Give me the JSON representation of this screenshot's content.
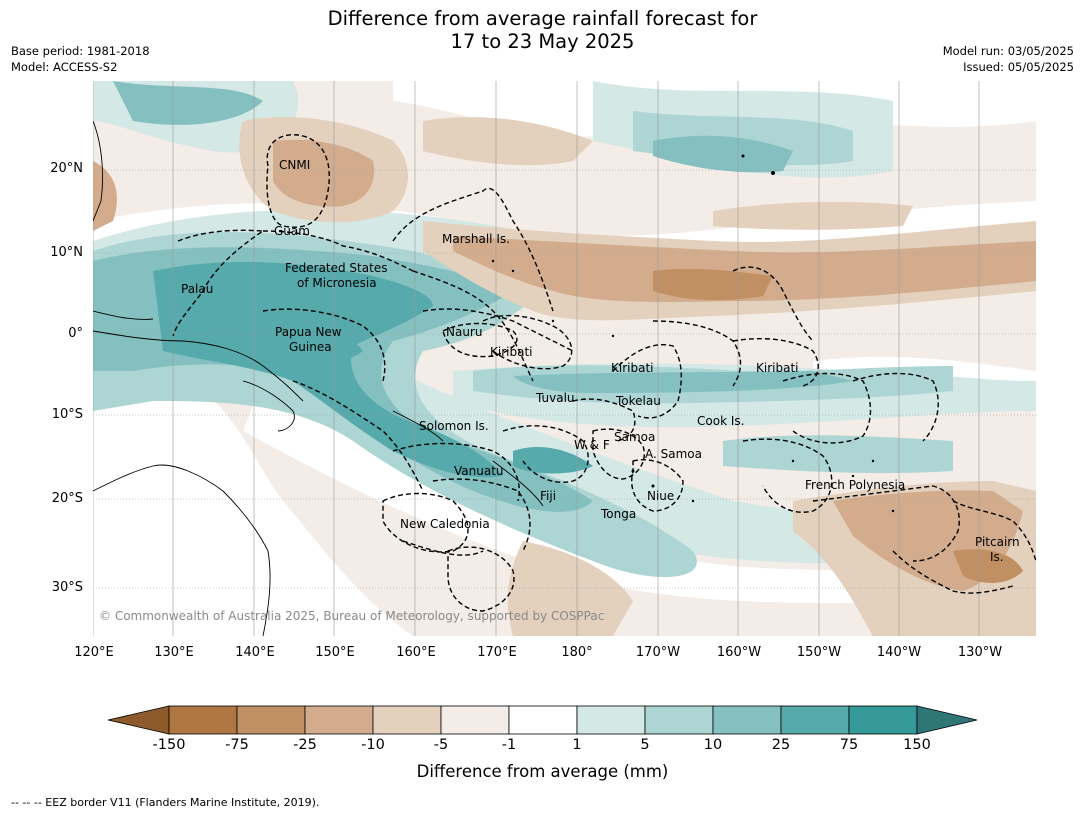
{
  "title": {
    "line1": "Difference from average rainfall forecast for",
    "line2": "17 to 23 May 2025"
  },
  "meta": {
    "base_period": "Base period: 1981-2018",
    "model": "Model: ACCESS-S2",
    "model_run": "Model run: 03/05/2025",
    "issued": "Issued: 05/05/2025"
  },
  "lat_labels": [
    "20°N",
    "10°N",
    "0°",
    "10°S",
    "20°S",
    "30°S"
  ],
  "lon_labels": [
    "120°E",
    "130°E",
    "140°E",
    "150°E",
    "160°E",
    "170°E",
    "180°",
    "170°W",
    "160°W",
    "150°W",
    "140°W",
    "130°W"
  ],
  "regions": [
    "CNMI",
    "Guam",
    "Marshall Is.",
    "Federated States",
    "of Micronesia",
    "Palau",
    "Papua New",
    "Guinea",
    "Nauru",
    "Kiribati",
    "Kiribati",
    "Kiribati",
    "Tuvalu",
    "Tokelau",
    "Cook Is.",
    "Solomon Is.",
    "W & F",
    "Samoa",
    "A. Samoa",
    "Vanuatu",
    "Fiji",
    "Niue",
    "French Polynesia",
    "Tonga",
    "New Caledonia",
    "Pitcairn",
    "Is."
  ],
  "copyright": "© Commonwealth of Australia 2025, Bureau of Meteorology, supported by COSPPac",
  "colorbar": {
    "labels": [
      "-150",
      "-75",
      "-25",
      "-10",
      "-5",
      "-1",
      "1",
      "5",
      "10",
      "25",
      "75",
      "150"
    ],
    "colors": [
      "#8e5a2a",
      "#ae7641",
      "#c09063",
      "#d2ac8c",
      "#e3d0bd",
      "#f4ece6",
      "#ffffff",
      "#d4e8e6",
      "#acd5d3",
      "#85c0c1",
      "#56aaab",
      "#35999a",
      "#2f7777"
    ],
    "title": "Difference from average (mm)"
  },
  "footer": "--  --  -- EEZ border V11 (Flanders Marine Institute, 2019)."
}
